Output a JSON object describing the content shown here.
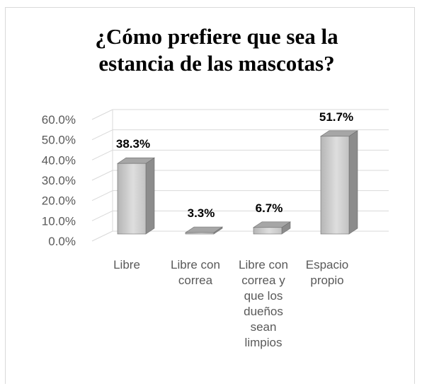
{
  "chart_data": {
    "type": "bar",
    "title": "¿Cómo prefiere que sea la estancia de las mascotas?",
    "title_lines": [
      "¿Cómo prefiere que sea la",
      "estancia de las mascotas?"
    ],
    "categories": [
      "Libre",
      "Libre con correa",
      "Libre con correa y que los dueños sean limpios",
      "Espacio propio"
    ],
    "category_lines": [
      [
        "Libre"
      ],
      [
        "Libre con",
        "correa"
      ],
      [
        "Libre con",
        "correa y",
        "que los",
        "dueños",
        "sean",
        "limpios"
      ],
      [
        "Espacio",
        "propio"
      ]
    ],
    "values": [
      38.3,
      3.3,
      6.7,
      51.7
    ],
    "value_labels": [
      "38.3%",
      "3.3%",
      "6.7%",
      "51.7%"
    ],
    "yticks": [
      "0.0%",
      "10.0%",
      "20.0%",
      "30.0%",
      "40.0%",
      "50.0%",
      "60.0%"
    ],
    "ylim": [
      0,
      60
    ],
    "xlabel": "",
    "ylabel": "",
    "grid": true,
    "three_d": true,
    "colors": {
      "bar_front": "#c8c8c8",
      "bar_side": "#8c8c8c",
      "bar_top": "#a6a6a6",
      "gridline": "#d9d9d9"
    }
  }
}
